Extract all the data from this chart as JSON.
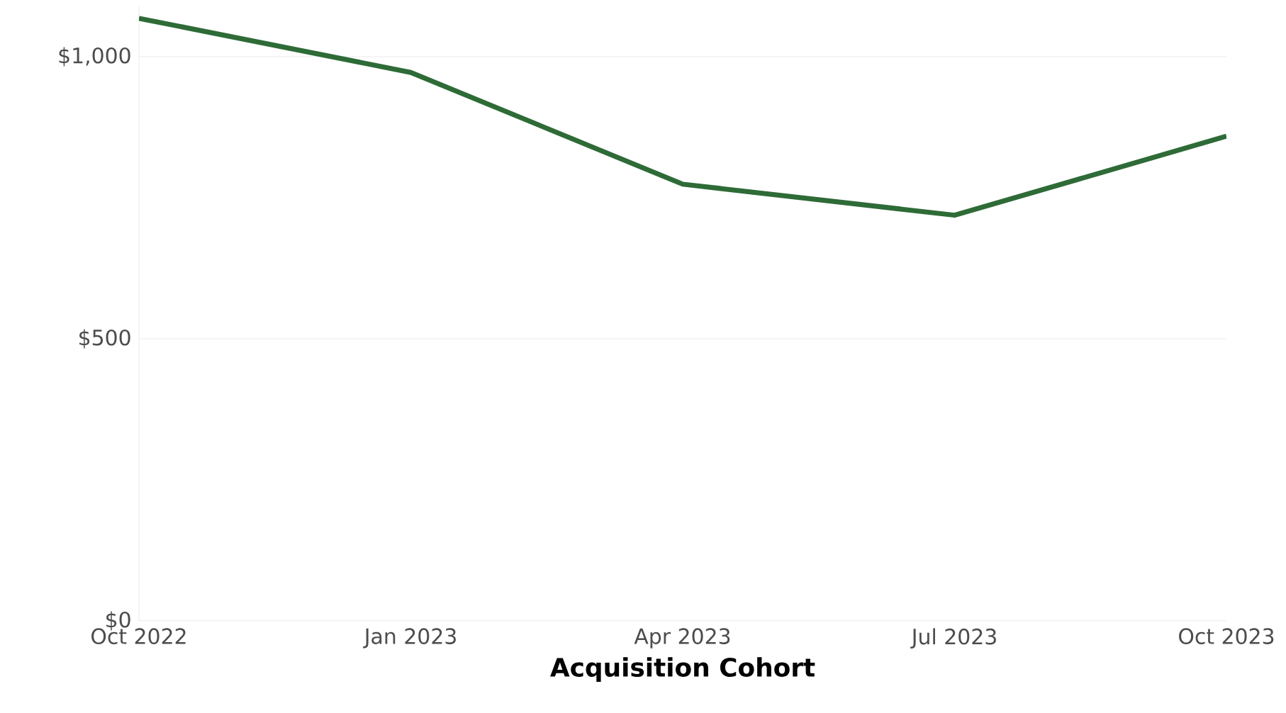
{
  "chart_data": {
    "type": "line",
    "xlabel": "Acquisition Cohort",
    "categories": [
      "Oct 2022",
      "Jan 2023",
      "Apr 2023",
      "Jul 2023",
      "Oct 2023"
    ],
    "series": [
      {
        "color": "#2e6b37",
        "values": [
          1068,
          972,
          774,
          719,
          859
        ]
      }
    ],
    "ylim": [
      0,
      1090
    ],
    "yticks": [
      {
        "value": 0,
        "label": "$0"
      },
      {
        "value": 500,
        "label": "$500"
      },
      {
        "value": 1000,
        "label": "$1,000"
      }
    ],
    "grid": "y",
    "marker": "none",
    "line_style": "solid"
  }
}
